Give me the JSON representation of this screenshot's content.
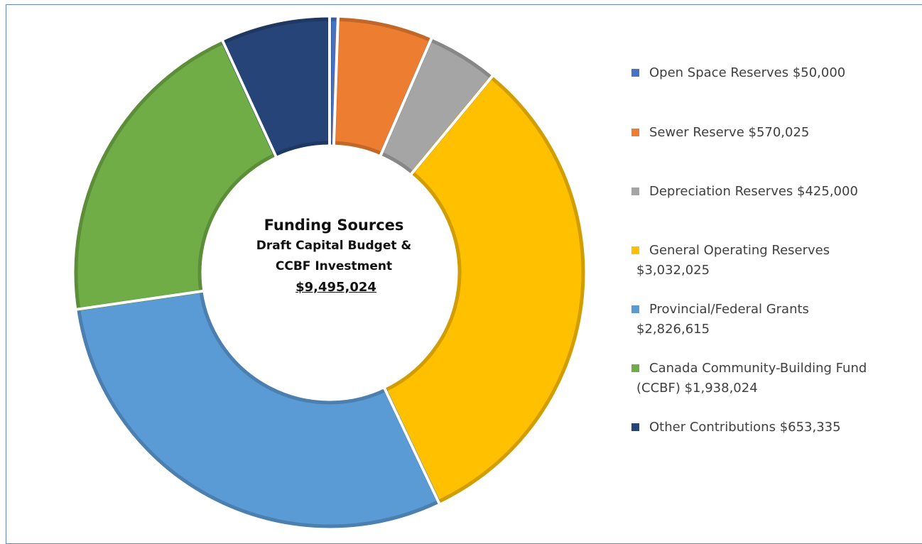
{
  "chart_data": {
    "type": "pie",
    "style": "donut",
    "center_label": {
      "title": "Funding Sources",
      "line1": "Draft Capital Budget &",
      "line2": "CCBF Investment",
      "total": "$9,495,024"
    },
    "legend_position": "right",
    "series": [
      {
        "name": "Open Space Reserves",
        "value": 50000,
        "color": "#4472C4",
        "legend_line1": "Open Space Reserves   $50,000",
        "legend_line2": ""
      },
      {
        "name": "Sewer Reserve",
        "value": 570025,
        "color": "#ED7D31",
        "legend_line1": "Sewer Reserve   $570,025",
        "legend_line2": ""
      },
      {
        "name": "Depreciation Reserves",
        "value": 425000,
        "color": "#A5A5A5",
        "legend_line1": "Depreciation Reserves   $425,000",
        "legend_line2": ""
      },
      {
        "name": "General Operating Reserves",
        "value": 3032025,
        "color": "#FFC000",
        "legend_line1": "General Operating Reserves",
        "legend_line2": "$3,032,025"
      },
      {
        "name": "Provincial/Federal Grants",
        "value": 2826615,
        "color": "#5B9BD5",
        "legend_line1": "Provincial/Federal Grants",
        "legend_line2": "$2,826,615"
      },
      {
        "name": "Canada Community-Building Fund (CCBF)",
        "value": 1938024,
        "color": "#70AD47",
        "legend_line1": "Canada Community-Building Fund",
        "legend_line2": "(CCBF)   $1,938,024"
      },
      {
        "name": "Other Contributions",
        "value": 653335,
        "color": "#264478",
        "legend_line1": "Other Contributions   $653,335",
        "legend_line2": ""
      }
    ]
  }
}
